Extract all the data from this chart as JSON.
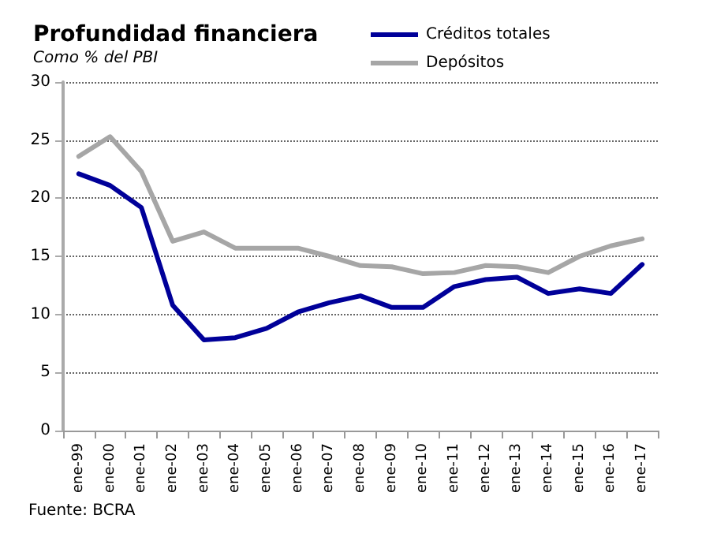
{
  "chart_data": {
    "type": "line",
    "title": "Profundidad financiera",
    "subtitle": "Como % del PBI",
    "categories": [
      "ene-99",
      "ene-00",
      "ene-01",
      "ene-02",
      "ene-03",
      "ene-04",
      "ene-05",
      "ene-06",
      "ene-07",
      "ene-08",
      "ene-09",
      "ene-10",
      "ene-11",
      "ene-12",
      "ene-13",
      "ene-14",
      "ene-15",
      "ene-16",
      "ene-17"
    ],
    "series": [
      {
        "name": "Créditos totales",
        "color": "#000099",
        "values": [
          22.1,
          21.1,
          19.2,
          10.8,
          7.8,
          8.0,
          8.8,
          10.2,
          11.0,
          11.6,
          10.6,
          10.6,
          12.4,
          13.0,
          13.2,
          11.8,
          12.2,
          11.8,
          14.3
        ]
      },
      {
        "name": "Depósitos",
        "color": "#a6a6a6",
        "values": [
          23.6,
          25.3,
          22.3,
          16.3,
          17.1,
          15.7,
          15.7,
          15.7,
          15.0,
          14.2,
          14.1,
          13.5,
          13.6,
          14.2,
          14.1,
          13.6,
          15.0,
          15.9,
          16.5
        ]
      }
    ],
    "ylim": [
      0,
      30
    ],
    "yticks": [
      0,
      5,
      10,
      15,
      20,
      25,
      30
    ],
    "grid": "y",
    "legend": "top right",
    "marker": "none",
    "line_style": "solid",
    "annotations": [
      "Fuente: BCRA"
    ]
  }
}
